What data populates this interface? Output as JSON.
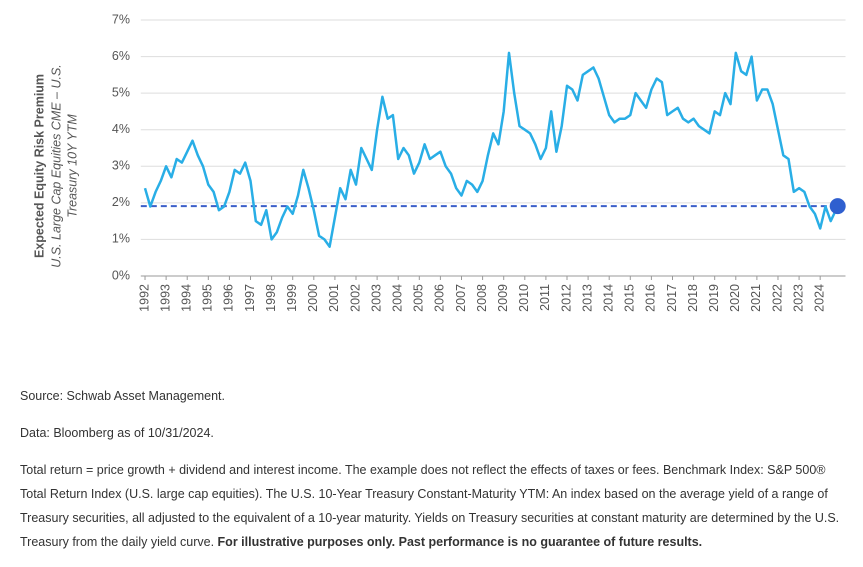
{
  "chart_data": {
    "type": "line",
    "y_label": "Expected Equity Risk Premium",
    "y_label_sub": [
      "U.S. Large Cap Equities CME – U.S.",
      "Treasury 10Y YTM"
    ],
    "x": [
      1992,
      1992.25,
      1992.5,
      1992.75,
      1993,
      1993.25,
      1993.5,
      1993.75,
      1994,
      1994.25,
      1994.5,
      1994.75,
      1995,
      1995.25,
      1995.5,
      1995.75,
      1996,
      1996.25,
      1996.5,
      1996.75,
      1997,
      1997.25,
      1997.5,
      1997.75,
      1998,
      1998.25,
      1998.5,
      1998.75,
      1999,
      1999.25,
      1999.5,
      1999.75,
      2000,
      2000.25,
      2000.5,
      2000.75,
      2001,
      2001.25,
      2001.5,
      2001.75,
      2002,
      2002.25,
      2002.5,
      2002.75,
      2003,
      2003.25,
      2003.5,
      2003.75,
      2004,
      2004.25,
      2004.5,
      2004.75,
      2005,
      2005.25,
      2005.5,
      2005.75,
      2006,
      2006.25,
      2006.5,
      2006.75,
      2007,
      2007.25,
      2007.5,
      2007.75,
      2008,
      2008.25,
      2008.5,
      2008.75,
      2009,
      2009.25,
      2009.5,
      2009.75,
      2010,
      2010.25,
      2010.5,
      2010.75,
      2011,
      2011.25,
      2011.5,
      2011.75,
      2012,
      2012.25,
      2012.5,
      2012.75,
      2013,
      2013.25,
      2013.5,
      2013.75,
      2014,
      2014.25,
      2014.5,
      2014.75,
      2015,
      2015.25,
      2015.5,
      2015.75,
      2016,
      2016.25,
      2016.5,
      2016.75,
      2017,
      2017.25,
      2017.5,
      2017.75,
      2018,
      2018.25,
      2018.5,
      2018.75,
      2019,
      2019.25,
      2019.5,
      2019.75,
      2020,
      2020.25,
      2020.5,
      2020.75,
      2021,
      2021.25,
      2021.5,
      2021.75,
      2022,
      2022.25,
      2022.5,
      2022.75,
      2023,
      2023.25,
      2023.5,
      2023.75,
      2024,
      2024.25,
      2024.5,
      2024.83
    ],
    "series": [
      {
        "color": "#29aee6",
        "values": [
          2.4,
          1.9,
          2.3,
          2.6,
          3.0,
          2.7,
          3.2,
          3.1,
          3.4,
          3.7,
          3.3,
          3.0,
          2.5,
          2.3,
          1.8,
          1.9,
          2.3,
          2.9,
          2.8,
          3.1,
          2.6,
          1.5,
          1.4,
          1.8,
          1.0,
          1.2,
          1.6,
          1.9,
          1.7,
          2.2,
          2.9,
          2.4,
          1.8,
          1.1,
          1.0,
          0.8,
          1.6,
          2.4,
          2.1,
          2.9,
          2.5,
          3.5,
          3.2,
          2.9,
          4.0,
          4.9,
          4.3,
          4.4,
          3.2,
          3.5,
          3.3,
          2.8,
          3.1,
          3.6,
          3.2,
          3.3,
          3.4,
          3.0,
          2.8,
          2.4,
          2.2,
          2.6,
          2.5,
          2.3,
          2.6,
          3.3,
          3.9,
          3.6,
          4.5,
          6.1,
          5.0,
          4.1,
          4.0,
          3.9,
          3.6,
          3.2,
          3.5,
          4.5,
          3.4,
          4.1,
          5.2,
          5.1,
          4.8,
          5.5,
          5.6,
          5.7,
          5.4,
          4.9,
          4.4,
          4.2,
          4.3,
          4.3,
          4.4,
          5.0,
          4.8,
          4.6,
          5.1,
          5.4,
          5.3,
          4.4,
          4.5,
          4.6,
          4.3,
          4.2,
          4.3,
          4.1,
          4.0,
          3.9,
          4.5,
          4.4,
          5.0,
          4.7,
          6.1,
          5.6,
          5.5,
          6.0,
          4.8,
          5.1,
          5.1,
          4.7,
          4.0,
          3.3,
          3.2,
          2.3,
          2.4,
          2.3,
          1.9,
          1.7,
          1.3,
          1.9,
          1.5,
          1.91
        ]
      }
    ],
    "reference_line": {
      "value": 1.91,
      "color": "#3b5fc9"
    },
    "endpoint_color": "#2f5fcf",
    "xlim": [
      1991.8,
      2025.2
    ],
    "xticks": [
      1992,
      1993,
      1994,
      1995,
      1996,
      1997,
      1998,
      1999,
      2000,
      2001,
      2002,
      2003,
      2004,
      2005,
      2006,
      2007,
      2008,
      2009,
      2010,
      2011,
      2012,
      2013,
      2014,
      2015,
      2016,
      2017,
      2018,
      2019,
      2020,
      2021,
      2022,
      2023,
      2024
    ],
    "ylim": [
      0,
      7
    ],
    "yticks": [
      {
        "value": 0,
        "label": "0%"
      },
      {
        "value": 1,
        "label": "1%"
      },
      {
        "value": 2,
        "label": "2%"
      },
      {
        "value": 3,
        "label": "3%"
      },
      {
        "value": 4,
        "label": "4%"
      },
      {
        "value": 5,
        "label": "5%"
      },
      {
        "value": 6,
        "label": "6%"
      },
      {
        "value": 7,
        "label": "7%"
      }
    ],
    "grid": true
  },
  "notes": {
    "source": "Source: Schwab Asset Management.",
    "data": "Data: Bloomberg as of 10/31/2024.",
    "disclaimer": "Total return = price growth + dividend and interest income. The example does not reflect the effects of taxes or fees. Benchmark Index: S&P 500® Total Return Index (U.S. large cap equities). The U.S. 10-Year Treasury Constant-Maturity YTM: An index based on the average yield of a range of Treasury securities, all adjusted to the equivalent of a 10-year maturity. Yields on Treasury securities at constant maturity are determined by the U.S. Treasury from the daily yield curve.",
    "disclaimer_bold": "For illustrative purposes only. Past performance is no guarantee of future results."
  }
}
